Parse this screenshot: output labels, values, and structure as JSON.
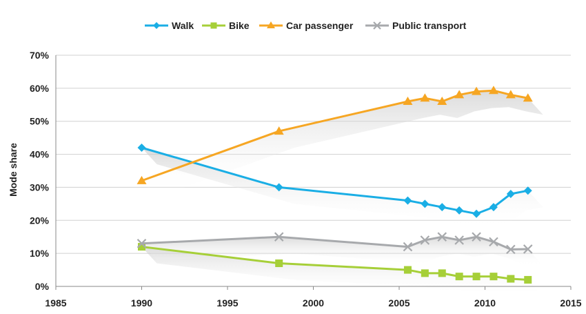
{
  "chart_data": {
    "type": "line",
    "title": "",
    "xlabel": "",
    "ylabel": "Mode share",
    "xlim": [
      1985,
      2015
    ],
    "ylim": [
      0,
      70
    ],
    "x_ticks": [
      1985,
      1990,
      1995,
      2000,
      2005,
      2010,
      2015
    ],
    "y_ticks": [
      0,
      10,
      20,
      30,
      40,
      50,
      60,
      70
    ],
    "y_tick_format": "percent",
    "grid": true,
    "legend_position": "top-center",
    "series": [
      {
        "name": "Walk",
        "color": "#1aaee5",
        "marker": "diamond",
        "points": [
          [
            1990,
            42
          ],
          [
            1998,
            30
          ],
          [
            2005.5,
            26
          ],
          [
            2006.5,
            25
          ],
          [
            2007.5,
            24
          ],
          [
            2008.5,
            23
          ],
          [
            2009.5,
            22
          ],
          [
            2010.5,
            24
          ],
          [
            2011.5,
            28
          ],
          [
            2012.5,
            29
          ]
        ]
      },
      {
        "name": "Bike",
        "color": "#a6cf38",
        "marker": "square",
        "points": [
          [
            1990,
            12
          ],
          [
            1998,
            7
          ],
          [
            2005.5,
            5
          ],
          [
            2006.5,
            4
          ],
          [
            2007.5,
            4
          ],
          [
            2008.5,
            3
          ],
          [
            2009.5,
            3
          ],
          [
            2010.5,
            3
          ],
          [
            2011.5,
            2.3
          ],
          [
            2012.5,
            2
          ]
        ]
      },
      {
        "name": "Car passenger",
        "color": "#f6a623",
        "marker": "triangle",
        "points": [
          [
            1990,
            32
          ],
          [
            1998,
            47
          ],
          [
            2005.5,
            56
          ],
          [
            2006.5,
            57
          ],
          [
            2007.5,
            56
          ],
          [
            2008.5,
            58
          ],
          [
            2009.5,
            59
          ],
          [
            2010.5,
            59.3
          ],
          [
            2011.5,
            58
          ],
          [
            2012.5,
            57
          ]
        ]
      },
      {
        "name": "Public transport",
        "color": "#a7a9ac",
        "marker": "x",
        "points": [
          [
            1990,
            13
          ],
          [
            1998,
            15
          ],
          [
            2005.5,
            12
          ],
          [
            2006.5,
            14
          ],
          [
            2007.5,
            15
          ],
          [
            2008.5,
            14
          ],
          [
            2009.5,
            15
          ],
          [
            2010.5,
            13.5
          ],
          [
            2011.5,
            11.2
          ],
          [
            2012.5,
            11.3
          ]
        ]
      }
    ]
  }
}
